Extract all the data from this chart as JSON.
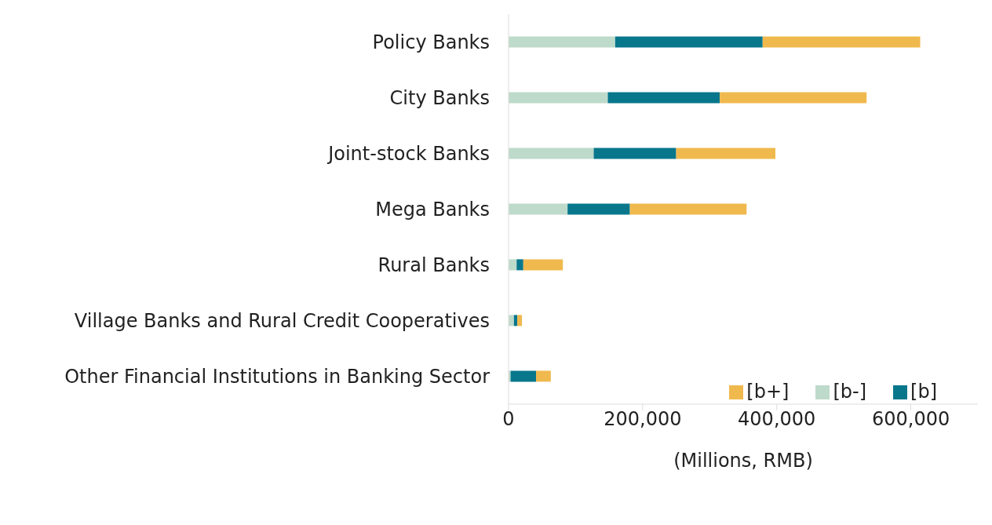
{
  "chart_data": {
    "type": "bar",
    "orientation": "horizontal",
    "stacked": true,
    "xlabel": "(Millions, RMB)",
    "categories": [
      "Policy Banks",
      "City Banks",
      "Joint-stock Banks",
      "Mega Banks",
      "Rural Banks",
      "Village Banks and Rural Credit Cooperatives",
      "Other Financial Institutions in Banking Sector"
    ],
    "series": [
      {
        "name": "[b-]",
        "color": "#bedacb",
        "values": [
          159000,
          148000,
          127000,
          88000,
          12000,
          8000,
          3000
        ]
      },
      {
        "name": "[b]",
        "color": "#08778c",
        "values": [
          220000,
          167000,
          123000,
          93000,
          10000,
          5000,
          38000
        ]
      },
      {
        "name": "[b+]",
        "color": "#f0b94e",
        "values": [
          235000,
          219000,
          148000,
          174000,
          59000,
          7000,
          22000
        ]
      }
    ],
    "xlim": [
      0,
      700000
    ],
    "xticks": [
      0,
      {
        "value": 200000,
        "label": "200,000"
      },
      {
        "value": 400000,
        "label": "400,000"
      },
      {
        "value": 600000,
        "label": "600,000"
      }
    ],
    "grid": false,
    "legend": "bottom right"
  }
}
